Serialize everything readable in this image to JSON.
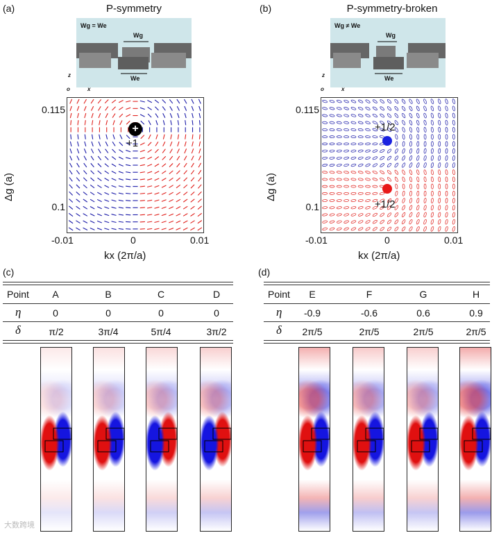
{
  "panels": {
    "a": {
      "label": "(a)",
      "title": "P-symmetry",
      "schematic_text": {
        "eq": "Wg = We",
        "wg": "Wg",
        "we": "We",
        "axis_z": "z",
        "axis_x": "x",
        "axis_o": "o"
      },
      "plot": {
        "ylabel": "Δg (a)",
        "xlabel": "kx (2π/a)",
        "yticks": [
          "0.115",
          "0.1"
        ],
        "xticks": [
          "-0.01",
          "0",
          "0.01"
        ],
        "charge_label": "+1",
        "charge_symbol": "+"
      }
    },
    "b": {
      "label": "(b)",
      "title": "P-symmetry-broken",
      "schematic_text": {
        "eq": "Wg ≠ We",
        "wg": "Wg",
        "we": "We",
        "axis_z": "z",
        "axis_x": "x",
        "axis_o": "o"
      },
      "plot": {
        "ylabel": "Δg (a)",
        "xlabel": "kx (2π/a)",
        "yticks": [
          "0.115",
          "0.1"
        ],
        "xticks": [
          "-0.01",
          "0",
          "0.01"
        ],
        "charge_top_label": "+1/2",
        "charge_bottom_label": "+1/2"
      }
    },
    "c": {
      "label": "(c)",
      "table": {
        "row_headers": [
          "Point",
          "η",
          "δ"
        ],
        "points": [
          "A",
          "B",
          "C",
          "D"
        ],
        "eta": [
          "0",
          "0",
          "0",
          "0"
        ],
        "delta": [
          "π/2",
          "3π/4",
          "5π/4",
          "3π/2"
        ]
      }
    },
    "d": {
      "label": "(d)",
      "table": {
        "row_headers": [
          "Point",
          "η",
          "δ"
        ],
        "points": [
          "E",
          "F",
          "G",
          "H"
        ],
        "eta": [
          "-0.9",
          "-0.6",
          "0.6",
          "0.9"
        ],
        "delta": [
          "2π/5",
          "2π/5",
          "2π/5",
          "2π/5"
        ]
      }
    }
  },
  "colors": {
    "red": "#e0201c",
    "blue": "#1a1aa8",
    "schematic_bg": "#cfe6ea"
  },
  "watermark": "大数跨境"
}
